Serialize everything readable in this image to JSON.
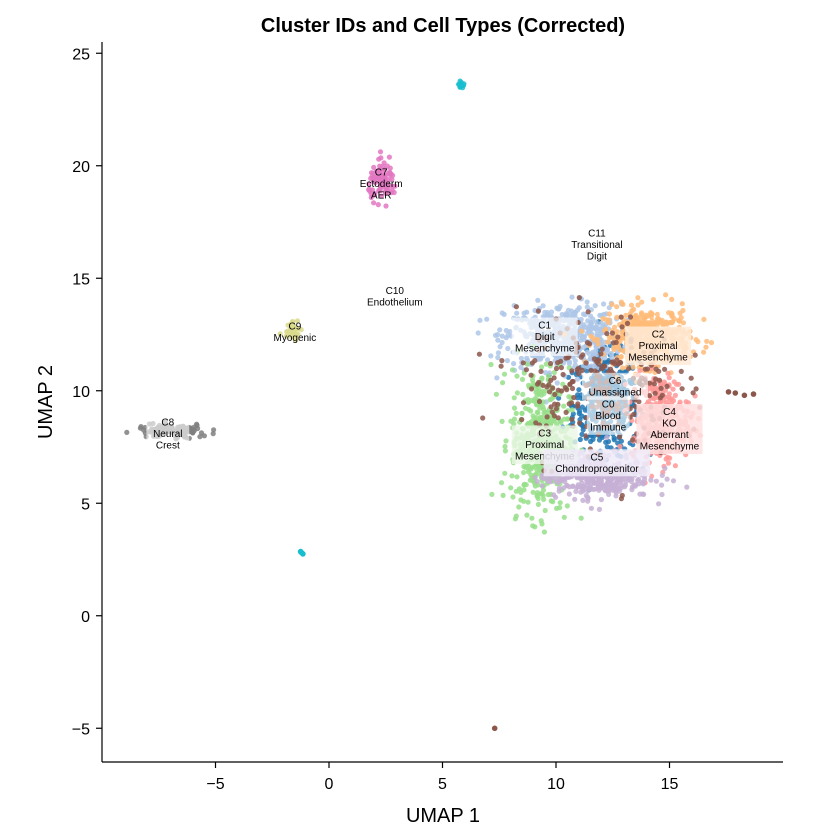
{
  "chart_data": {
    "type": "scatter",
    "title": "Cluster IDs and Cell Types (Corrected)",
    "xlabel": "UMAP 1",
    "ylabel": "UMAP 2",
    "xlim": [
      -10,
      20
    ],
    "ylim": [
      -6.5,
      25.5
    ],
    "xticks": [
      -5,
      0,
      5,
      10,
      15
    ],
    "xtick_labels": [
      "−5",
      "0",
      "5",
      "10",
      "15"
    ],
    "yticks": [
      -5,
      0,
      5,
      10,
      15,
      20,
      25
    ],
    "ytick_labels": [
      "−5",
      "0",
      "5",
      "10",
      "15",
      "20",
      "25"
    ],
    "grid": false,
    "legend": "none",
    "clusters": [
      {
        "id": "C0",
        "color": "#1f77b4",
        "cx": 12.2,
        "cy": 9.4,
        "sx": 0.9,
        "sy": 1.4,
        "n": 420,
        "label_lines": [
          "C0",
          "Blood",
          "Immune"
        ],
        "label_x": 12.3,
        "label_y": 8.9,
        "label_bg": "rgba(255,255,255,0.65)"
      },
      {
        "id": "C1",
        "color": "#aec7e8",
        "cx": 10.3,
        "cy": 12.4,
        "sx": 1.6,
        "sy": 0.9,
        "n": 520,
        "label_lines": [
          "C1",
          "Digit",
          "Mesenchyme"
        ],
        "label_x": 9.5,
        "label_y": 12.4,
        "label_bg": "rgba(255,255,255,0.65)"
      },
      {
        "id": "C2",
        "color": "#ffbb78",
        "cx": 14.0,
        "cy": 12.4,
        "sx": 1.2,
        "sy": 0.8,
        "n": 420,
        "label_lines": [
          "C2",
          "Proximal",
          "Mesenchyme"
        ],
        "label_x": 14.5,
        "label_y": 12.0,
        "label_bg": "rgba(255,235,215,0.85)"
      },
      {
        "id": "C3",
        "color": "#98df8a",
        "cx": 9.3,
        "cy": 7.8,
        "sx": 0.8,
        "sy": 2.0,
        "n": 460,
        "label_lines": [
          "C3",
          "Proximal",
          "Mesenchyme"
        ],
        "label_x": 9.5,
        "label_y": 7.6,
        "label_bg": "rgba(235,248,230,0.8)"
      },
      {
        "id": "C4",
        "color": "#ff9896",
        "cx": 14.6,
        "cy": 8.8,
        "sx": 0.8,
        "sy": 1.2,
        "n": 320,
        "label_lines": [
          "C4",
          "KO",
          "Aberrant",
          "Mesenchyme"
        ],
        "label_x": 15.0,
        "label_y": 8.3,
        "label_bg": "rgba(255,225,225,0.85)"
      },
      {
        "id": "C5",
        "color": "#c5b0d5",
        "cx": 11.8,
        "cy": 6.2,
        "sx": 1.5,
        "sy": 0.6,
        "n": 380,
        "label_lines": [
          "C5",
          "Chondroprogenitor"
        ],
        "label_x": 11.8,
        "label_y": 6.8,
        "label_bg": "rgba(240,235,248,0.85)"
      },
      {
        "id": "C6",
        "color": "#8c564b",
        "cx": 11.8,
        "cy": 10.2,
        "sx": 2.2,
        "sy": 2.0,
        "n": 260,
        "label_lines": [
          "C6",
          "Unassigned"
        ],
        "label_x": 12.6,
        "label_y": 10.2,
        "label_bg": "rgba(255,255,255,0.6)"
      },
      {
        "id": "C7",
        "color": "#e377c2",
        "cx": 2.4,
        "cy": 19.3,
        "sx": 0.4,
        "sy": 0.5,
        "n": 90,
        "label_lines": [
          "C7",
          "Ectoderm",
          "AER"
        ],
        "label_x": 2.3,
        "label_y": 19.2,
        "label_bg": "rgba(255,255,255,0.0)"
      },
      {
        "id": "C8",
        "color": "#7f7f7f",
        "cx": -6.9,
        "cy": 8.2,
        "sx": 1.0,
        "sy": 0.2,
        "n": 110,
        "label_lines": [
          "C8",
          "Neural",
          "Crest"
        ],
        "label_x": -7.1,
        "label_y": 8.1,
        "label_bg": "rgba(255,255,255,0.6)"
      },
      {
        "id": "C9",
        "color": "#dbdb8d",
        "cx": -1.6,
        "cy": 12.8,
        "sx": 0.25,
        "sy": 0.3,
        "n": 40,
        "label_lines": [
          "C9",
          "Myogenic"
        ],
        "label_x": -1.5,
        "label_y": 12.6,
        "label_bg": "rgba(255,255,255,0.0)"
      },
      {
        "id": "C10",
        "color": "#17becf",
        "cx": 5.8,
        "cy": 23.6,
        "sx": 0.06,
        "sy": 0.08,
        "n": 14,
        "label_lines": [
          "C10",
          "Endothelium"
        ],
        "label_x": 2.9,
        "label_y": 14.2,
        "label_bg": "rgba(255,255,255,0.0)"
      },
      {
        "id": "C11",
        "color": "#9edae5",
        "cx": 11.8,
        "cy": 16.5,
        "sx": 0.0,
        "sy": 0.0,
        "n": 0,
        "label_lines": [
          "C11",
          "Transitional",
          "Digit"
        ],
        "label_x": 11.8,
        "label_y": 16.5,
        "label_bg": "rgba(255,255,255,0.0)"
      }
    ],
    "extra_points": [
      {
        "color": "#17becf",
        "x": -1.25,
        "y": 2.85
      },
      {
        "color": "#17becf",
        "x": -1.2,
        "y": 2.8
      },
      {
        "color": "#17becf",
        "x": -1.15,
        "y": 2.75
      },
      {
        "color": "#8c564b",
        "x": 7.3,
        "y": -5.0
      },
      {
        "color": "#8c564b",
        "x": 17.9,
        "y": 9.9
      },
      {
        "color": "#8c564b",
        "x": 18.3,
        "y": 9.8
      },
      {
        "color": "#8c564b",
        "x": 18.7,
        "y": 9.85
      },
      {
        "color": "#8c564b",
        "x": 17.6,
        "y": 9.95
      }
    ]
  }
}
